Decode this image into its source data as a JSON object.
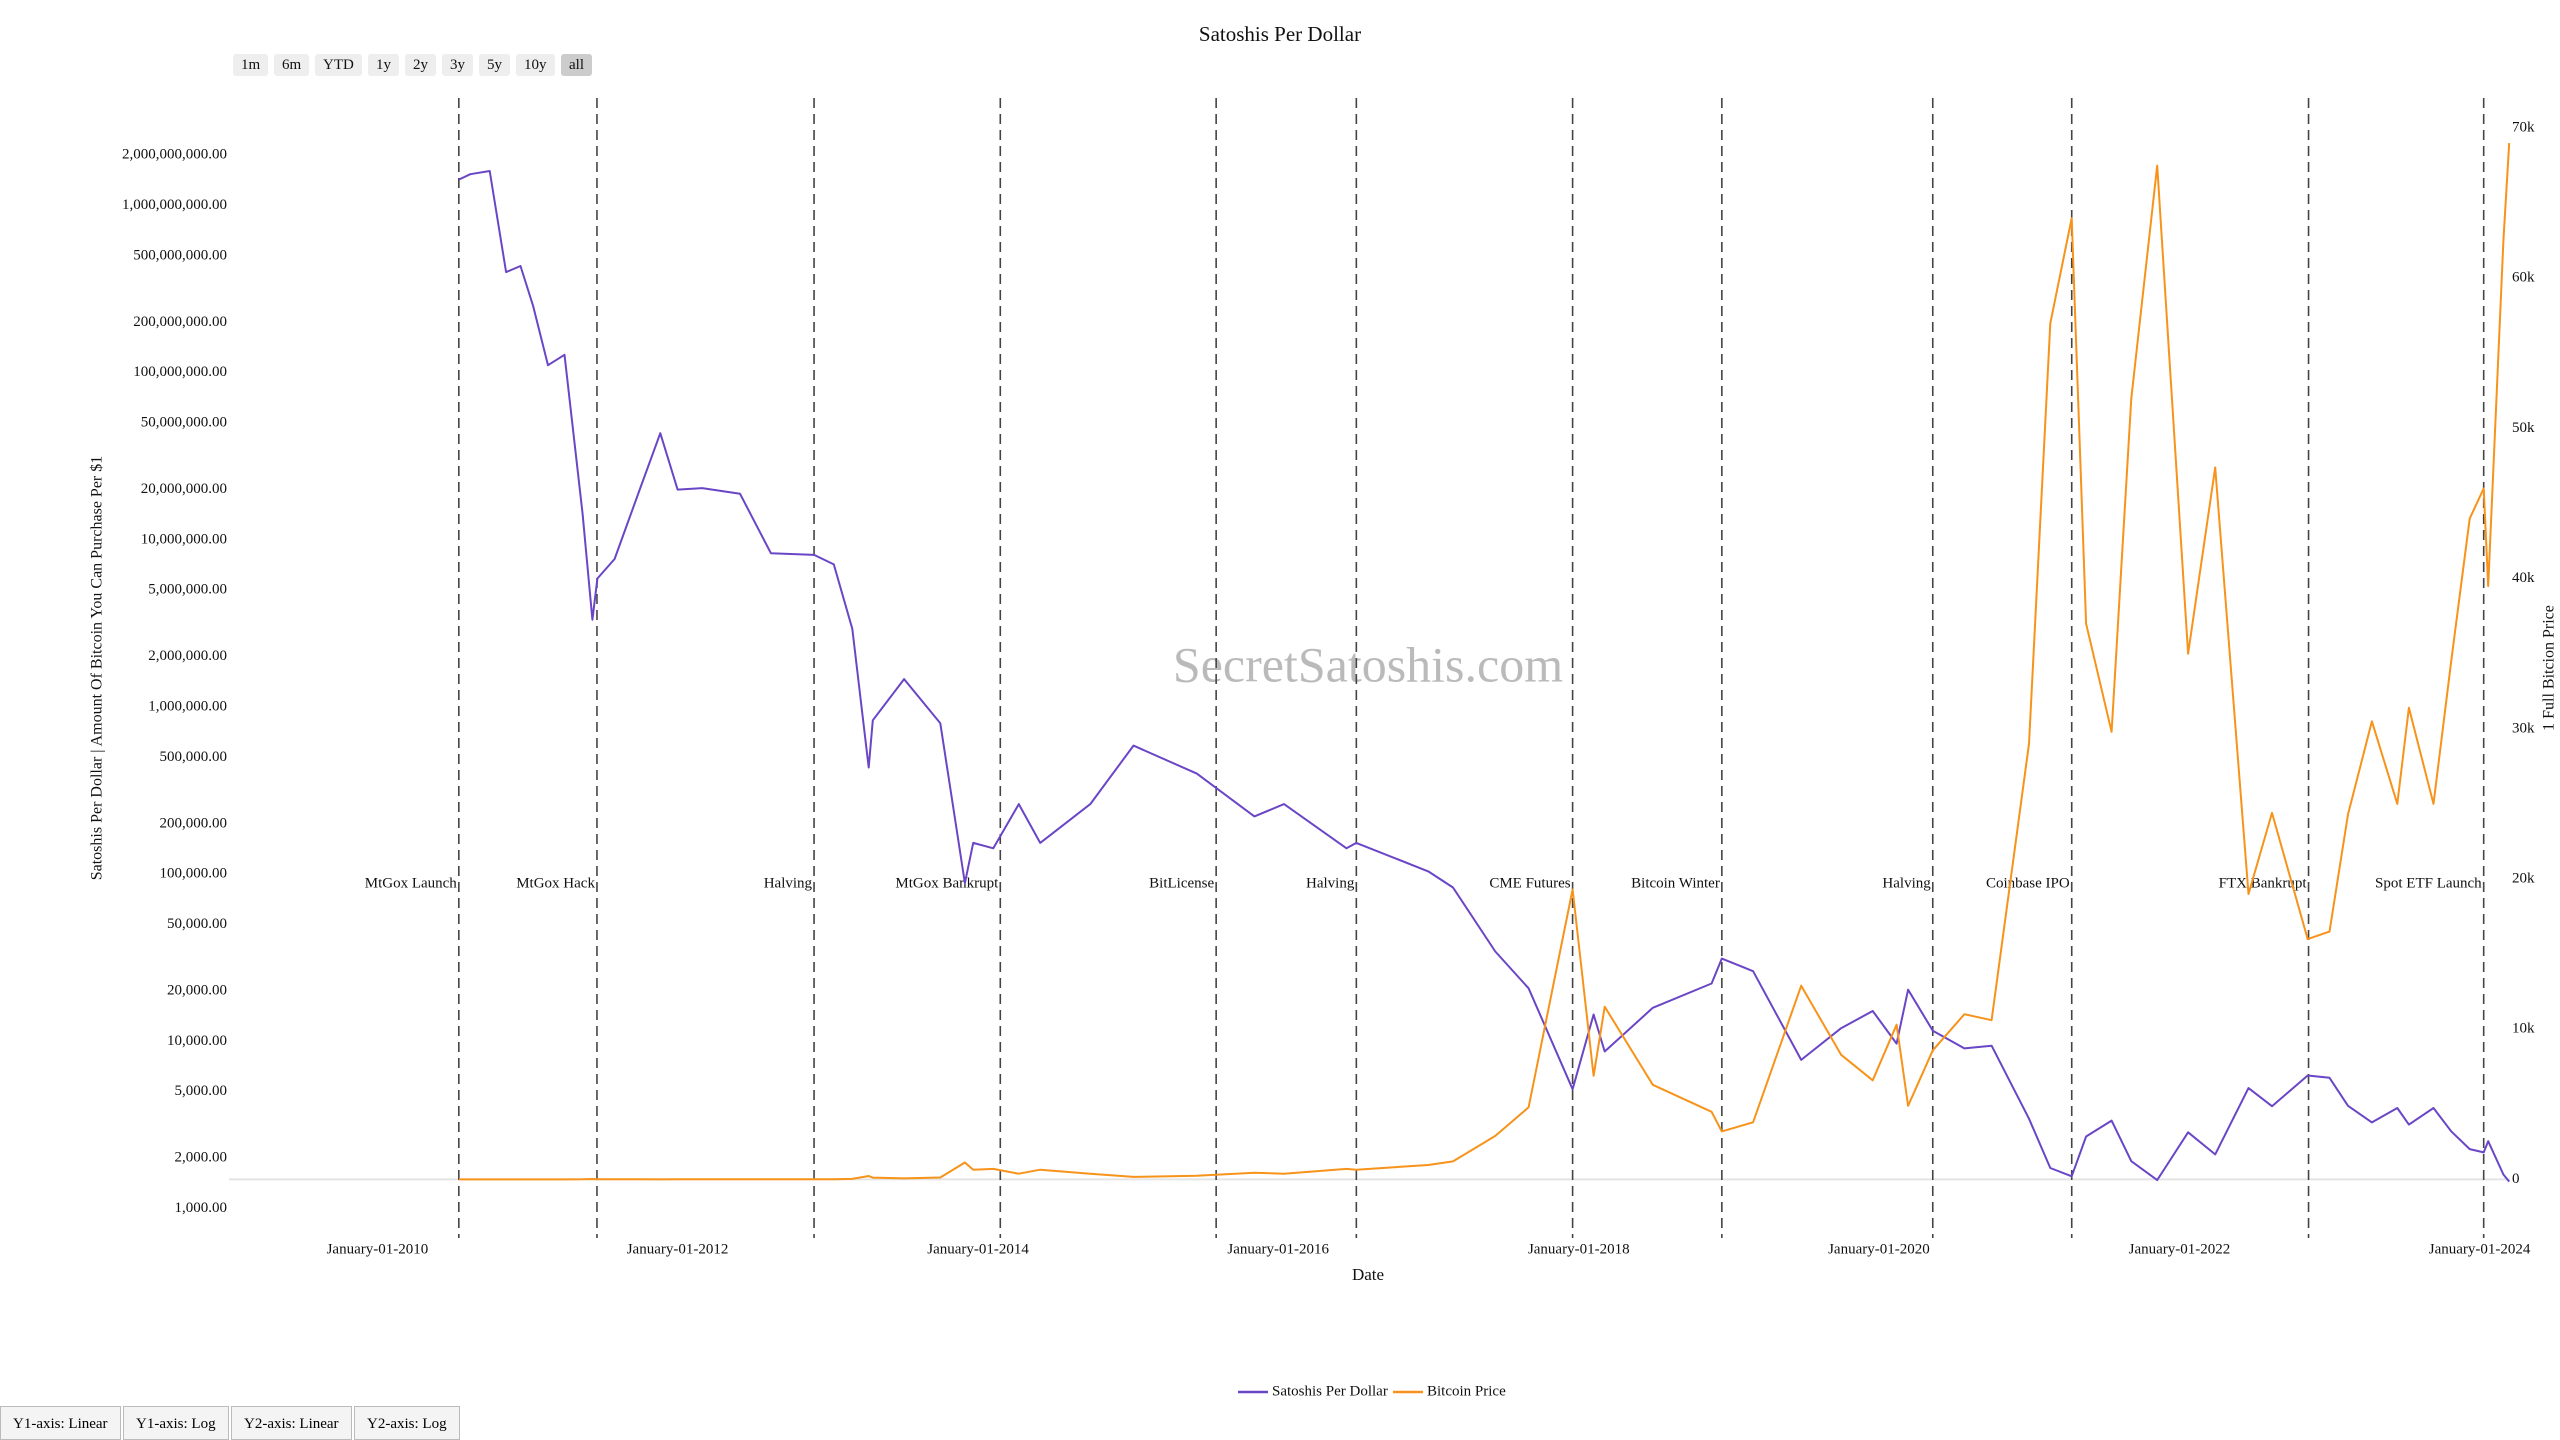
{
  "controls": {
    "range_buttons": [
      "1m",
      "6m",
      "YTD",
      "1y",
      "2y",
      "3y",
      "5y",
      "10y",
      "all"
    ],
    "active_range": "all",
    "axis_buttons": [
      "Y1-axis: Linear",
      "Y1-axis: Log",
      "Y2-axis: Linear",
      "Y2-axis: Log"
    ]
  },
  "chart_data": {
    "type": "line",
    "title": "Satoshis Per Dollar",
    "watermark": "SecretSatoshis.com",
    "xlabel": "Date",
    "ylabel": "Satoshis Per Dollar | Amount Of Bitcoin You Can Purchase Per $1",
    "y2label": "1 Full Bitcion Price",
    "x": [
      "2010-07-18",
      "2010-08-15",
      "2010-10-01",
      "2010-11-10",
      "2010-12-15",
      "2011-01-15",
      "2011-02-20",
      "2011-04-01",
      "2011-05-15",
      "2011-06-08",
      "2011-06-20",
      "2011-08-01",
      "2011-10-01",
      "2011-11-20",
      "2012-01-01",
      "2012-03-01",
      "2012-06-01",
      "2012-08-15",
      "2012-11-28",
      "2013-01-15",
      "2013-03-01",
      "2013-04-10",
      "2013-04-20",
      "2013-07-05",
      "2013-10-01",
      "2013-11-30",
      "2013-12-20",
      "2014-02-07",
      "2014-04-10",
      "2014-06-01",
      "2014-10-01",
      "2015-01-14",
      "2015-06-17",
      "2015-11-04",
      "2016-01-15",
      "2016-06-15",
      "2016-07-09",
      "2016-12-31",
      "2017-03-01",
      "2017-06-12",
      "2017-09-01",
      "2017-12-17",
      "2018-02-06",
      "2018-03-05",
      "2018-06-30",
      "2018-11-20",
      "2018-12-15",
      "2019-03-01",
      "2019-06-26",
      "2019-10-01",
      "2019-12-17",
      "2020-02-13",
      "2020-03-12",
      "2020-05-11",
      "2020-07-27",
      "2020-10-01",
      "2020-12-31",
      "2021-02-21",
      "2021-04-14",
      "2021-05-19",
      "2021-07-20",
      "2021-09-06",
      "2021-11-08",
      "2022-01-22",
      "2022-03-29",
      "2022-06-18",
      "2022-08-14",
      "2022-11-09",
      "2023-01-01",
      "2023-02-15",
      "2023-04-14",
      "2023-06-15",
      "2023-07-13",
      "2023-09-11",
      "2023-10-24",
      "2023-12-08",
      "2024-01-11",
      "2024-01-22",
      "2024-02-28",
      "2024-03-13"
    ],
    "series": [
      {
        "name": "Satoshis Per Dollar",
        "color": "#6a46c6",
        "axis": "y",
        "values": [
          1430000000,
          1540000000,
          1610000000,
          400000000,
          435000000,
          250000000,
          111000000,
          128000000,
          14300000,
          3330000,
          5880000,
          7690000,
          20000000,
          43500000,
          20000000,
          20400000,
          18900000,
          8330000,
          8130000,
          7140000,
          2940000,
          435000,
          833000,
          1470000,
          800000,
          88500,
          154000,
          143000,
          263000,
          154000,
          263000,
          588000,
          400000,
          222000,
          263000,
          143000,
          154000,
          104000,
          83300,
          34500,
          20800,
          5180,
          14500,
          8700,
          15900,
          22200,
          31300,
          26300,
          7750,
          12000,
          15200,
          9710,
          20400,
          11600,
          9090,
          9430,
          3450,
          1750,
          1560,
          2700,
          3360,
          1920,
          1480,
          2860,
          2110,
          5260,
          4100,
          6250,
          6060,
          4120,
          3280,
          4000,
          3180,
          4000,
          2900,
          2270,
          2170,
          2530,
          1600,
          1450
        ]
      },
      {
        "name": "Bitcoin Price",
        "color": "#f7931a",
        "axis": "y2",
        "values": [
          0.07,
          0.065,
          0.062,
          0.25,
          0.23,
          0.4,
          0.9,
          0.78,
          7,
          30,
          17,
          13,
          5,
          2.3,
          5,
          4.9,
          5.3,
          12,
          12.3,
          14,
          34,
          230,
          120,
          68,
          125,
          1130,
          650,
          700,
          380,
          650,
          380,
          170,
          250,
          450,
          380,
          700,
          650,
          960,
          1200,
          2900,
          4800,
          19300,
          6900,
          11500,
          6300,
          4500,
          3200,
          3800,
          12900,
          8300,
          6600,
          10300,
          4900,
          8600,
          11000,
          10600,
          29000,
          57000,
          64000,
          37000,
          29800,
          52000,
          67500,
          35000,
          47400,
          19000,
          24400,
          16000,
          16500,
          24300,
          30500,
          25000,
          31400,
          25000,
          34500,
          44000,
          46000,
          39500,
          62500,
          69000
        ]
      }
    ],
    "xlim": [
      "2009-01-05",
      "2024-03-15"
    ],
    "xticks": [
      {
        "value": "2010-01-01",
        "label": "January-01-2010"
      },
      {
        "value": "2012-01-01",
        "label": "January-01-2012"
      },
      {
        "value": "2014-01-01",
        "label": "January-01-2014"
      },
      {
        "value": "2016-01-01",
        "label": "January-01-2016"
      },
      {
        "value": "2018-01-01",
        "label": "January-01-2018"
      },
      {
        "value": "2020-01-01",
        "label": "January-01-2020"
      },
      {
        "value": "2022-01-01",
        "label": "January-01-2022"
      },
      {
        "value": "2024-01-01",
        "label": "January-01-2024"
      }
    ],
    "y_scale": "log",
    "ylim": [
      667,
      4400000000
    ],
    "yticks": [
      {
        "value": 1000,
        "label": "1,000.00"
      },
      {
        "value": 2000,
        "label": "2,000.00"
      },
      {
        "value": 5000,
        "label": "5,000.00"
      },
      {
        "value": 10000,
        "label": "10,000.00"
      },
      {
        "value": 20000,
        "label": "20,000.00"
      },
      {
        "value": 50000,
        "label": "50,000.00"
      },
      {
        "value": 100000,
        "label": "100,000.00"
      },
      {
        "value": 200000,
        "label": "200,000.00"
      },
      {
        "value": 500000,
        "label": "500,000.00"
      },
      {
        "value": 1000000,
        "label": "1,000,000.00"
      },
      {
        "value": 2000000,
        "label": "2,000,000.00"
      },
      {
        "value": 5000000,
        "label": "5,000,000.00"
      },
      {
        "value": 10000000,
        "label": "10,000,000.00"
      },
      {
        "value": 20000000,
        "label": "20,000,000.00"
      },
      {
        "value": 50000000,
        "label": "50,000,000.00"
      },
      {
        "value": 100000000,
        "label": "100,000,000.00"
      },
      {
        "value": 200000000,
        "label": "200,000,000.00"
      },
      {
        "value": 500000000,
        "label": "500,000,000.00"
      },
      {
        "value": 1000000000,
        "label": "1,000,000,000.00"
      },
      {
        "value": 2000000000,
        "label": "2,000,000,000.00"
      }
    ],
    "y2lim": [
      -3900,
      72000
    ],
    "y2ticks": [
      0,
      {
        "value": 10000,
        "label": "10k"
      },
      {
        "value": 20000,
        "label": "20k"
      },
      {
        "value": 30000,
        "label": "30k"
      },
      {
        "value": 40000,
        "label": "40k"
      },
      {
        "value": 50000,
        "label": "50k"
      },
      {
        "value": 60000,
        "label": "60k"
      },
      {
        "value": 70000,
        "label": "70k"
      }
    ],
    "annotations": [
      {
        "x": "2010-07-18",
        "label": "MtGox Launch"
      },
      {
        "x": "2011-06-19",
        "label": "MtGox Hack"
      },
      {
        "x": "2012-11-28",
        "label": "Halving"
      },
      {
        "x": "2014-02-24",
        "label": "MtGox Bankrupt"
      },
      {
        "x": "2015-08-03",
        "label": "BitLicense"
      },
      {
        "x": "2016-07-09",
        "label": "Halving"
      },
      {
        "x": "2017-12-17",
        "label": "CME Futures"
      },
      {
        "x": "2018-12-15",
        "label": "Bitcoin Winter"
      },
      {
        "x": "2020-05-11",
        "label": "Halving"
      },
      {
        "x": "2021-04-14",
        "label": "Coinbase IPO"
      },
      {
        "x": "2022-11-11",
        "label": "FTX Bankrupt"
      },
      {
        "x": "2024-01-11",
        "label": "Spot ETF Launch"
      }
    ]
  }
}
